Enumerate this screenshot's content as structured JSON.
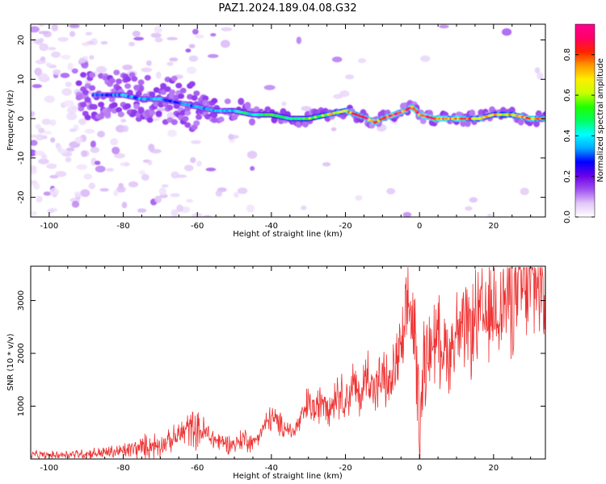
{
  "title": "PAZ1.2024.189.04.08.G32",
  "chart_data": [
    {
      "type": "heatmap",
      "xlabel": "Height of straight line (km)",
      "ylabel": "Frequency (Hz)",
      "xlim": [
        -105,
        34
      ],
      "ylim": [
        -25,
        24
      ],
      "xticks": [
        -100,
        -80,
        -60,
        -40,
        -20,
        0,
        20
      ],
      "yticks": [
        -20,
        -10,
        0,
        10,
        20
      ],
      "colorbar": {
        "label": "Normalized spectral amplitude",
        "range": [
          0,
          0.95
        ],
        "ticks": [
          0.0,
          0.2,
          0.4,
          0.6,
          0.8
        ],
        "colormap": [
          "#ffffff",
          "#e2c8f8",
          "#a050f0",
          "#6a00e8",
          "#0000ff",
          "#00aaff",
          "#00ffff",
          "#00ff60",
          "#20ff00",
          "#c8ff00",
          "#ffee00",
          "#ff9900",
          "#ff2200",
          "#ff0066",
          "#ff0090"
        ]
      },
      "center_frequency_trace": {
        "x": [
          -85,
          -80,
          -75,
          -70,
          -65,
          -60,
          -55,
          -50,
          -45,
          -40,
          -35,
          -30,
          -25,
          -20,
          -17,
          -14,
          -12,
          -10,
          -7,
          -4,
          -2,
          0,
          4,
          8,
          12,
          16,
          20,
          25,
          30,
          34
        ],
        "y": [
          6,
          6,
          5,
          5,
          4,
          3,
          2,
          2,
          1,
          1,
          0,
          0,
          1,
          2,
          1,
          0,
          -1,
          0,
          1,
          2,
          3,
          1,
          0,
          0,
          0,
          0,
          1,
          1,
          0,
          0
        ],
        "peak_amplitude": [
          0.3,
          0.35,
          0.35,
          0.35,
          0.3,
          0.35,
          0.35,
          0.4,
          0.45,
          0.5,
          0.5,
          0.55,
          0.65,
          0.7,
          0.8,
          0.85,
          0.8,
          0.8,
          0.9,
          0.85,
          0.8,
          0.85,
          0.9,
          0.8,
          0.8,
          0.75,
          0.7,
          0.7,
          0.75,
          0.8
        ]
      }
    },
    {
      "type": "line",
      "xlabel": "Height of straight line (km)",
      "ylabel": "SNR (10 * v/v)",
      "xlim": [
        -105,
        34
      ],
      "ylim": [
        0,
        3650
      ],
      "xticks": [
        -100,
        -80,
        -60,
        -40,
        -20,
        0,
        20
      ],
      "yticks": [
        1000,
        2000,
        3000
      ],
      "series": [
        {
          "color": "#ee3333",
          "x": [
            -105,
            -100,
            -95,
            -90,
            -85,
            -80,
            -75,
            -70,
            -67,
            -65,
            -62,
            -60,
            -58,
            -55,
            -52,
            -50,
            -47,
            -45,
            -43,
            -40,
            -38,
            -36,
            -34,
            -32,
            -30,
            -28,
            -26,
            -24,
            -22,
            -20,
            -18,
            -16,
            -14,
            -12,
            -10,
            -8,
            -6,
            -4,
            -3,
            -2,
            -1,
            0,
            1,
            2,
            4,
            6,
            8,
            10,
            12,
            14,
            16,
            18,
            20,
            22,
            25,
            28,
            31,
            34
          ],
          "y": [
            80,
            70,
            90,
            100,
            120,
            150,
            220,
            280,
            350,
            450,
            600,
            550,
            500,
            350,
            300,
            280,
            400,
            300,
            500,
            800,
            650,
            600,
            500,
            750,
            1050,
            900,
            1200,
            1000,
            1300,
            1100,
            1400,
            1150,
            1650,
            1300,
            1550,
            1350,
            1900,
            2200,
            3000,
            2600,
            2100,
            500,
            1800,
            1950,
            2300,
            2200,
            2000,
            2400,
            2350,
            2500,
            2700,
            2600,
            2850,
            2900,
            3100,
            3200,
            3350,
            3400
          ]
        }
      ]
    }
  ]
}
